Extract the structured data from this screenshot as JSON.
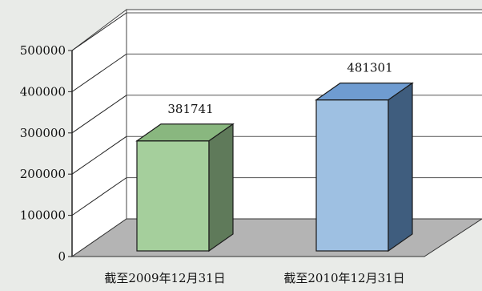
{
  "chart_data": {
    "type": "bar",
    "categories": [
      "截至2009年12月31日",
      "截至2010年12月31日"
    ],
    "values": [
      381741,
      481301
    ],
    "data_labels": [
      "381741",
      "481301"
    ],
    "yticks": [
      0,
      100000,
      200000,
      300000,
      400000,
      500000
    ],
    "ytick_labels": [
      "0",
      "100000",
      "200000",
      "300000",
      "400000",
      "500000"
    ],
    "ylim": [
      0,
      500000
    ],
    "grid": true,
    "three_d": true,
    "legend": "none",
    "colors": {
      "background": "#e9ebe8",
      "floor": "#b4b4b4",
      "walls": "#ffffff",
      "gridlines": "#222222",
      "bar_green_front": "#a5cf9c",
      "bar_green_top": "#89b77f",
      "bar_green_side": "#5f7a5a",
      "bar_blue_front": "#9ec0e2",
      "bar_blue_top": "#6f9cd1",
      "bar_blue_side": "#3f5d7e"
    }
  }
}
